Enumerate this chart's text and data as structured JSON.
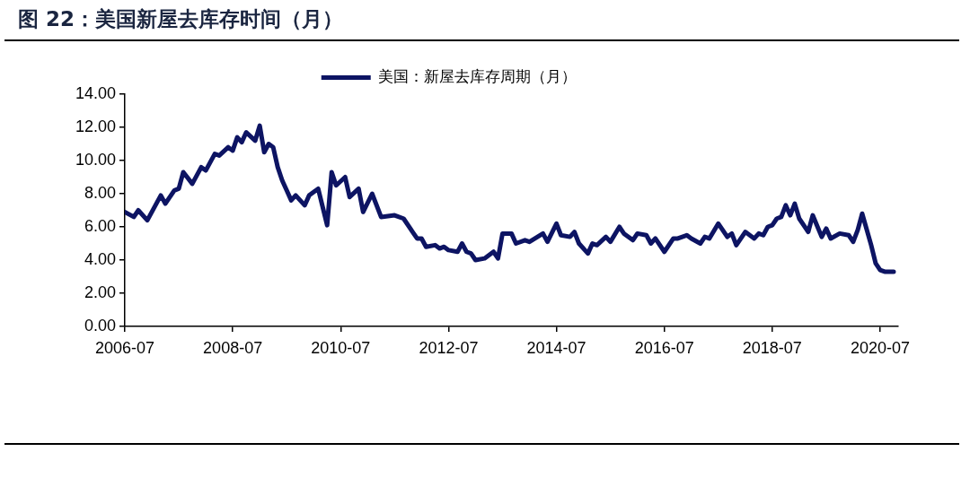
{
  "chart_data": {
    "type": "line",
    "title": "图 22：美国新屋去库存时间（月）",
    "x": [
      "2006-07",
      "2006-09",
      "2006-10",
      "2006-12",
      "2007-03",
      "2007-04",
      "2007-06",
      "2007-07",
      "2007-08",
      "2007-10",
      "2007-12",
      "2008-01",
      "2008-03",
      "2008-04",
      "2008-06",
      "2008-07",
      "2008-08",
      "2008-09",
      "2008-10",
      "2008-12",
      "2009-01",
      "2009-02",
      "2009-03",
      "2009-04",
      "2009-05",
      "2009-06",
      "2009-07",
      "2009-08",
      "2009-09",
      "2009-11",
      "2009-12",
      "2010-02",
      "2010-04",
      "2010-05",
      "2010-06",
      "2010-08",
      "2010-09",
      "2010-11",
      "2010-12",
      "2011-02",
      "2011-04",
      "2011-07",
      "2011-09",
      "2011-11",
      "2011-12",
      "2012-01",
      "2012-02",
      "2012-04",
      "2012-05",
      "2012-06",
      "2012-07",
      "2012-09",
      "2012-10",
      "2012-11",
      "2012-12",
      "2013-01",
      "2013-03",
      "2013-05",
      "2013-06",
      "2013-07",
      "2013-09",
      "2013-10",
      "2013-12",
      "2014-01",
      "2014-04",
      "2014-05",
      "2014-07",
      "2014-08",
      "2014-10",
      "2014-11",
      "2014-12",
      "2015-02",
      "2015-03",
      "2015-04",
      "2015-06",
      "2015-07",
      "2015-09",
      "2015-10",
      "2015-12",
      "2016-01",
      "2016-03",
      "2016-04",
      "2016-05",
      "2016-07",
      "2016-09",
      "2016-10",
      "2016-12",
      "2017-01",
      "2017-03",
      "2017-04",
      "2017-05",
      "2017-07",
      "2017-09",
      "2017-10",
      "2017-11",
      "2018-01",
      "2018-03",
      "2018-04",
      "2018-05",
      "2018-06",
      "2018-07",
      "2018-08",
      "2018-09",
      "2018-10",
      "2018-11",
      "2018-12",
      "2019-01",
      "2019-03",
      "2019-04",
      "2019-06",
      "2019-07",
      "2019-08",
      "2019-10",
      "2019-12",
      "2020-01",
      "2020-02",
      "2020-03",
      "2020-05",
      "2020-06",
      "2020-07",
      "2020-08",
      "2020-10"
    ],
    "series": [
      {
        "name": "美国：新屋去库存周期（月）",
        "color": "#0d1463",
        "values": [
          6.9,
          6.6,
          7.0,
          6.4,
          7.9,
          7.4,
          8.2,
          8.3,
          9.3,
          8.6,
          9.6,
          9.4,
          10.4,
          10.3,
          10.8,
          10.6,
          11.4,
          11.1,
          11.7,
          11.2,
          12.1,
          10.5,
          11.0,
          10.8,
          9.6,
          8.8,
          8.2,
          7.6,
          7.9,
          7.3,
          7.9,
          8.3,
          6.1,
          9.3,
          8.5,
          9.0,
          7.8,
          8.3,
          6.9,
          8.0,
          6.6,
          6.7,
          6.5,
          5.7,
          5.3,
          5.3,
          4.8,
          4.9,
          4.7,
          4.8,
          4.6,
          4.5,
          5.0,
          4.5,
          4.4,
          4.0,
          4.1,
          4.5,
          4.1,
          5.6,
          5.6,
          5.0,
          5.2,
          5.1,
          5.6,
          5.1,
          6.2,
          5.5,
          5.4,
          5.7,
          5.0,
          4.4,
          5.0,
          4.9,
          5.4,
          5.1,
          6.0,
          5.6,
          5.2,
          5.6,
          5.5,
          5.0,
          5.3,
          4.5,
          5.3,
          5.3,
          5.5,
          5.3,
          5.0,
          5.4,
          5.3,
          6.2,
          5.4,
          5.6,
          4.9,
          5.7,
          5.3,
          5.6,
          5.5,
          6.0,
          6.1,
          6.5,
          6.6,
          7.3,
          6.7,
          7.4,
          6.5,
          5.7,
          6.7,
          5.4,
          5.9,
          5.3,
          5.6,
          5.5,
          5.1,
          5.8,
          6.8,
          4.9,
          3.8,
          3.4,
          3.3,
          3.3
        ]
      }
    ],
    "xlim": [
      "2006-07",
      "2020-11"
    ],
    "xticks": [
      "2006-07",
      "2008-07",
      "2010-07",
      "2012-07",
      "2014-07",
      "2016-07",
      "2018-07",
      "2020-07"
    ],
    "ylim": [
      0,
      14
    ],
    "yticks": [
      {
        "value": 0,
        "label": "0.00"
      },
      {
        "value": 2,
        "label": "2.00"
      },
      {
        "value": 4,
        "label": "4.00"
      },
      {
        "value": 6,
        "label": "6.00"
      },
      {
        "value": 8,
        "label": "8.00"
      },
      {
        "value": 10,
        "label": "10.00"
      },
      {
        "value": 12,
        "label": "12.00"
      },
      {
        "value": 14,
        "label": "14.00"
      }
    ],
    "legend": "top"
  }
}
